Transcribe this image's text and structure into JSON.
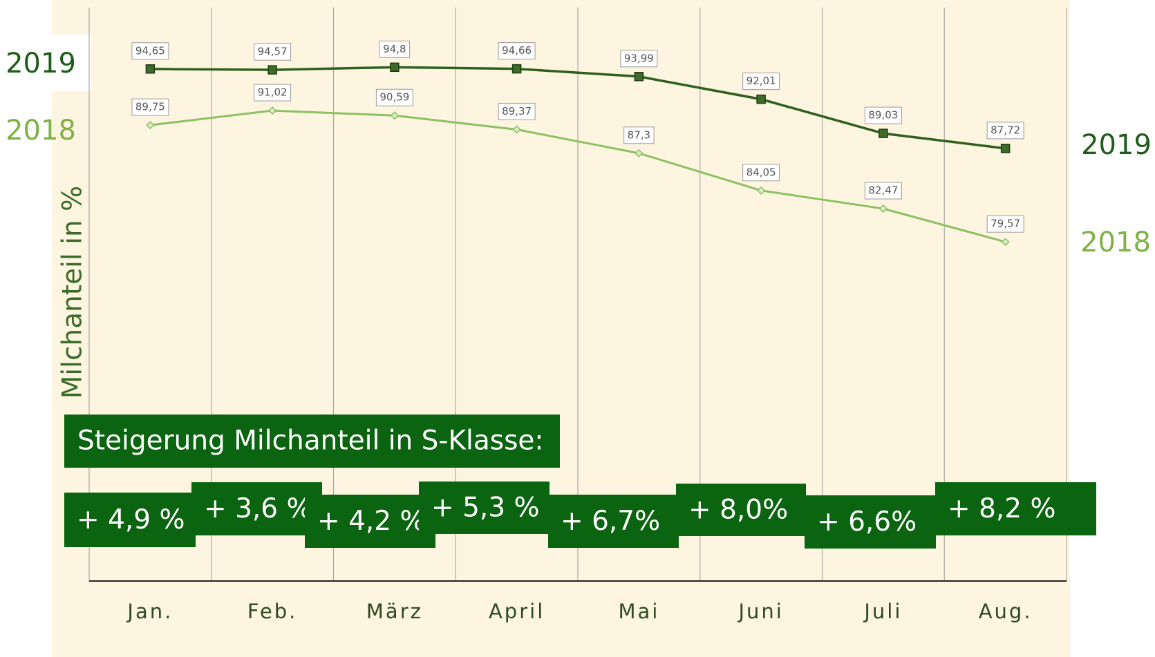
{
  "chart_data": {
    "type": "line",
    "y_label": "Milchanteil in  %",
    "categories": [
      "Jan.",
      "Feb.",
      "März",
      "April",
      "Mai",
      "Juni",
      "Juli",
      "Aug."
    ],
    "series": [
      {
        "name": "2019",
        "color": "#2f5f1f",
        "marker": "square",
        "values": [
          94.65,
          94.57,
          94.8,
          94.66,
          93.99,
          92.01,
          89.03,
          87.72
        ],
        "value_labels": [
          "94,65",
          "94,57",
          "94,8",
          "94,66",
          "93,99",
          "92,01",
          "89,03",
          "87,72"
        ]
      },
      {
        "name": "2018",
        "color": "#8cc063",
        "marker": "diamond",
        "values": [
          89.75,
          91.02,
          90.59,
          89.37,
          87.3,
          84.05,
          82.47,
          79.57
        ],
        "value_labels": [
          "89,75",
          "91,02",
          "90,59",
          "89,37",
          "87,3",
          "84,05",
          "82,47",
          "79,57"
        ]
      }
    ],
    "ylim": [
      50,
      100
    ],
    "grid": true,
    "annotations": {
      "heading": "Steigerung Milchanteil in S-Klasse:",
      "increases": [
        "+ 4,9 %",
        "+ 3,6 %",
        "+ 4,2 %",
        "+ 5,3 %",
        "+ 6,7%",
        "+ 8,0%",
        "+ 6,6%",
        "+ 8,2 %"
      ]
    }
  }
}
